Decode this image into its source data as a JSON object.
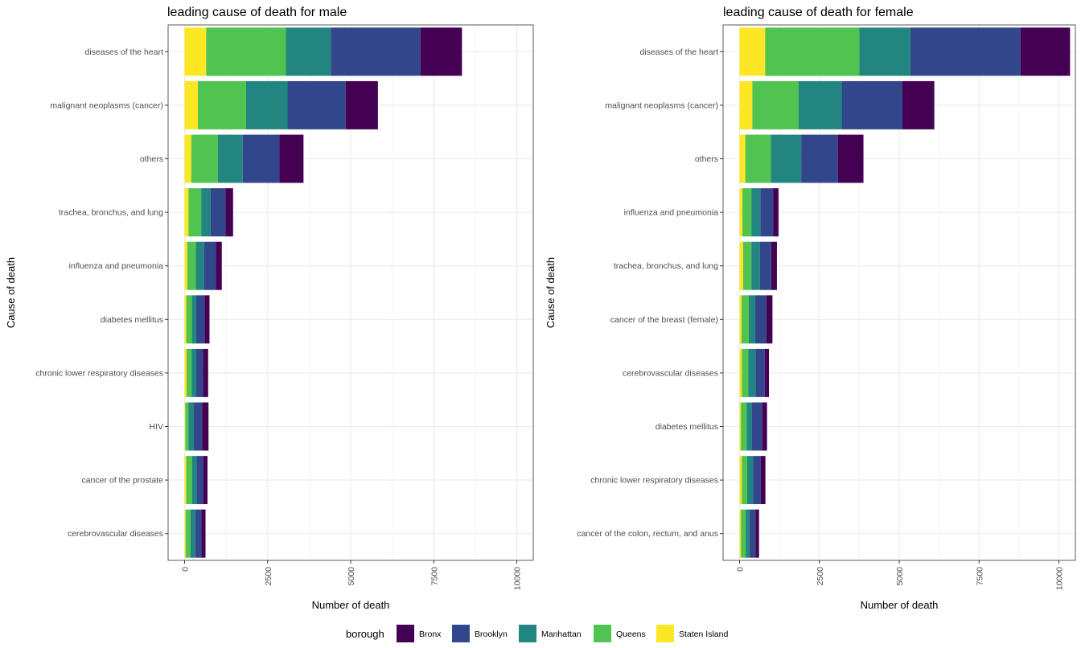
{
  "colors": {
    "Bronx": "#440154",
    "Brooklyn": "#31468b",
    "Manhattan": "#21867f",
    "Queens": "#51c350",
    "Staten Island": "#fde725",
    "panel_border": "#333333",
    "grid": "#ebebeb",
    "background": "#ffffff"
  },
  "legend": {
    "title": "borough",
    "items": [
      "Bronx",
      "Brooklyn",
      "Manhattan",
      "Queens",
      "Staten Island"
    ]
  },
  "chart_data": [
    {
      "type": "bar",
      "orientation": "horizontal",
      "stacked": true,
      "title": "leading cause of death for male",
      "xlabel": "Number of death",
      "ylabel": "Cause of death",
      "xlim": [
        0,
        10500
      ],
      "xticks": [
        0,
        2500,
        5000,
        7500,
        10000
      ],
      "grid": true,
      "legend_position": "bottom",
      "categories": [
        "diseases of the heart",
        "malignant neoplasms (cancer)",
        "others",
        "trachea, bronchus, and lung",
        "influenza and pneumonia",
        "diabetes mellitus",
        "chronic lower respiratory diseases",
        "HIV",
        "cancer of the prostate",
        "cerebrovascular diseases"
      ],
      "series": [
        {
          "name": "Staten Island",
          "values": [
            650,
            400,
            200,
            120,
            80,
            50,
            60,
            20,
            50,
            30
          ]
        },
        {
          "name": "Queens",
          "values": [
            2400,
            1450,
            800,
            380,
            260,
            170,
            150,
            100,
            180,
            150
          ]
        },
        {
          "name": "Manhattan",
          "values": [
            1350,
            1250,
            750,
            280,
            250,
            130,
            140,
            160,
            130,
            140
          ]
        },
        {
          "name": "Brooklyn",
          "values": [
            2700,
            1750,
            1100,
            450,
            350,
            250,
            200,
            250,
            200,
            190
          ]
        },
        {
          "name": "Bronx",
          "values": [
            1250,
            970,
            730,
            230,
            180,
            150,
            160,
            190,
            130,
            120
          ]
        }
      ]
    },
    {
      "type": "bar",
      "orientation": "horizontal",
      "stacked": true,
      "title": "leading cause of death for female",
      "xlabel": "Number of death",
      "ylabel": "Cause of death",
      "xlim": [
        0,
        10500
      ],
      "xticks": [
        0,
        2500,
        5000,
        7500,
        10000
      ],
      "grid": true,
      "legend_position": "bottom",
      "categories": [
        "diseases of the heart",
        "malignant neoplasms (cancer)",
        "others",
        "influenza and pneumonia",
        "trachea, bronchus, and lung",
        "cancer of the breast (female)",
        "cerebrovascular diseases",
        "diabetes mellitus",
        "chronic lower respiratory diseases",
        "cancer of the colon, rectum, and anus"
      ],
      "series": [
        {
          "name": "Staten Island",
          "values": [
            800,
            400,
            180,
            90,
            110,
            60,
            70,
            40,
            70,
            40
          ]
        },
        {
          "name": "Queens",
          "values": [
            2950,
            1450,
            800,
            280,
            260,
            230,
            200,
            180,
            170,
            150
          ]
        },
        {
          "name": "Manhattan",
          "values": [
            1600,
            1350,
            950,
            280,
            270,
            200,
            230,
            170,
            180,
            120
          ]
        },
        {
          "name": "Brooklyn",
          "values": [
            3450,
            1900,
            1150,
            400,
            350,
            350,
            290,
            320,
            240,
            190
          ]
        },
        {
          "name": "Bronx",
          "values": [
            1550,
            1000,
            800,
            170,
            180,
            190,
            130,
            150,
            150,
            110
          ]
        }
      ]
    }
  ]
}
